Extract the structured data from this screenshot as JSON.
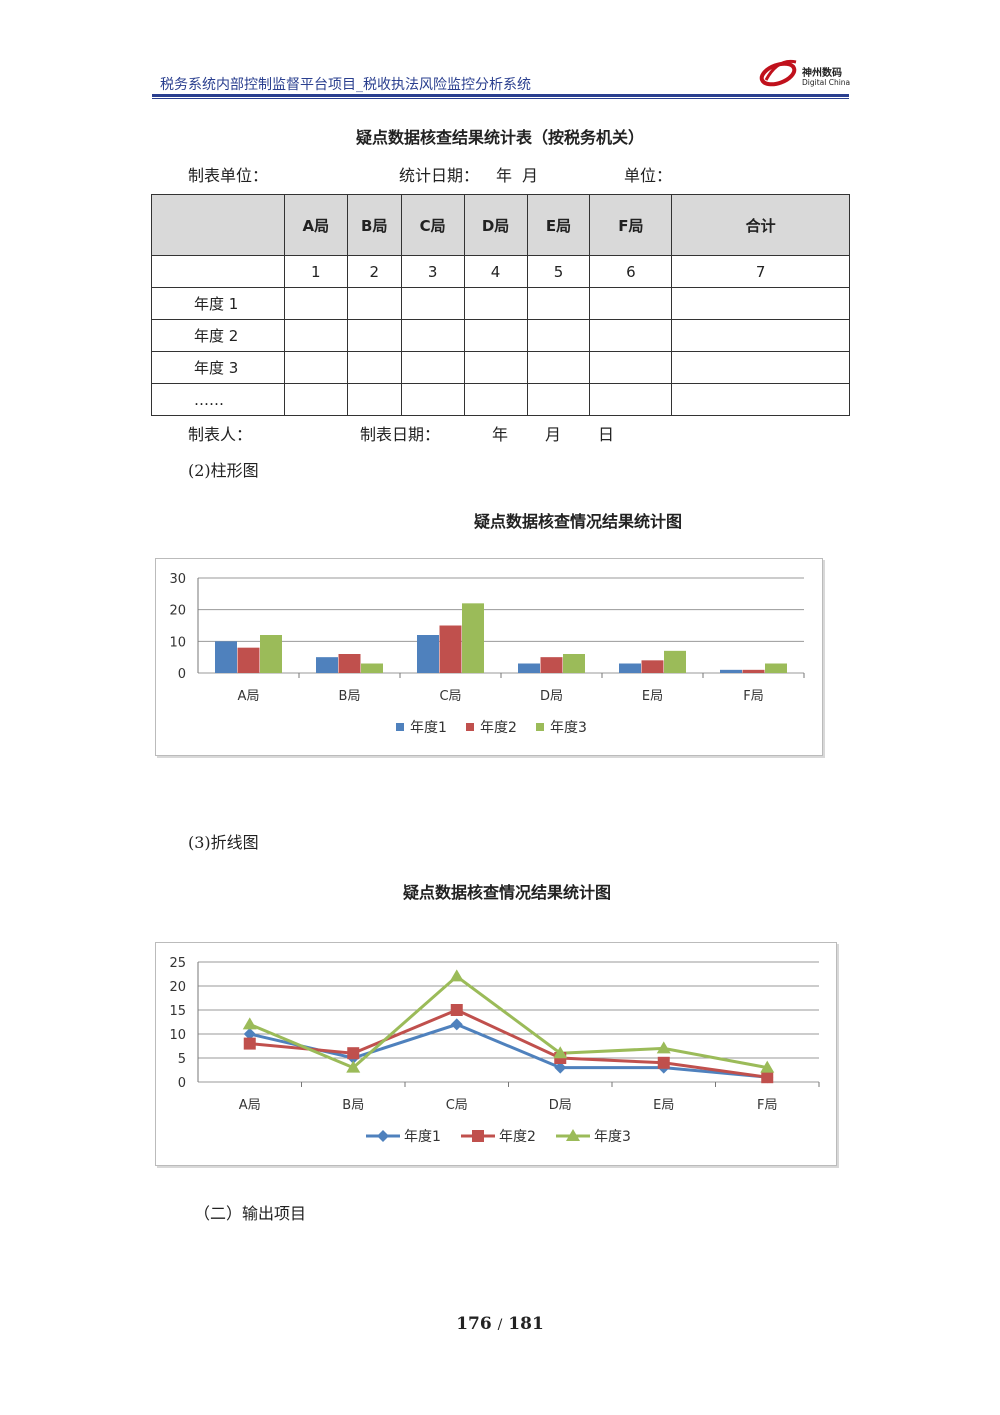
{
  "header": {
    "title": "税务系统内部控制监督平台项目_税收执法风险监控分析系统",
    "logo_cn": "神州数码",
    "logo_en": "Digital China"
  },
  "table": {
    "title": "疑点数据核查结果统计表（按税务机关）",
    "meta": {
      "unit_label": "制表单位：",
      "date_label": "统计日期：",
      "year": "年",
      "month": "月",
      "unit2_label": "单位："
    },
    "columns": [
      "A局",
      "B局",
      "C局",
      "D局",
      "E局",
      "F局",
      "合计"
    ],
    "numbers": [
      "1",
      "2",
      "3",
      "4",
      "5",
      "6",
      "7"
    ],
    "rows": [
      "年度 1",
      "年度 2",
      "年度 3",
      "……"
    ],
    "footer": {
      "maker_label": "制表人：",
      "date_label": "制表日期：",
      "year": "年",
      "month": "月",
      "day": "日"
    }
  },
  "bar_section": {
    "label": "(2)柱形图",
    "title": "疑点数据核查情况结果统计图"
  },
  "line_section": {
    "label": "(3)折线图",
    "title": "疑点数据核查情况结果统计图"
  },
  "output_section": {
    "label": "（二）输出项目"
  },
  "page": {
    "current": "176",
    "sep": "/",
    "total": "181"
  },
  "colors": {
    "series1": "#4f81bd",
    "series2": "#c0504d",
    "series3": "#9bbb59",
    "header_blue": "#2a3f8f"
  },
  "chart_data": [
    {
      "type": "bar",
      "title": "疑点数据核查情况结果统计图",
      "categories": [
        "A局",
        "B局",
        "C局",
        "D局",
        "E局",
        "F局"
      ],
      "series": [
        {
          "name": "年度1",
          "values": [
            10,
            5,
            12,
            3,
            3,
            1
          ]
        },
        {
          "name": "年度2",
          "values": [
            8,
            6,
            15,
            5,
            4,
            1
          ]
        },
        {
          "name": "年度3",
          "values": [
            12,
            3,
            22,
            6,
            7,
            3
          ]
        }
      ],
      "yticks": [
        "0",
        "10",
        "20",
        "30"
      ],
      "ylim": [
        0,
        30
      ],
      "grid": true,
      "legend": "bottom"
    },
    {
      "type": "line",
      "title": "疑点数据核查情况结果统计图",
      "categories": [
        "A局",
        "B局",
        "C局",
        "D局",
        "E局",
        "F局"
      ],
      "series": [
        {
          "name": "年度1",
          "values": [
            10,
            5,
            12,
            3,
            3,
            1
          ]
        },
        {
          "name": "年度2",
          "values": [
            8,
            6,
            15,
            5,
            4,
            1
          ]
        },
        {
          "name": "年度3",
          "values": [
            12,
            3,
            22,
            6,
            7,
            3
          ]
        }
      ],
      "yticks": [
        "0",
        "5",
        "10",
        "15",
        "20",
        "25"
      ],
      "ylim": [
        0,
        25
      ],
      "grid": true,
      "legend": "bottom"
    }
  ]
}
